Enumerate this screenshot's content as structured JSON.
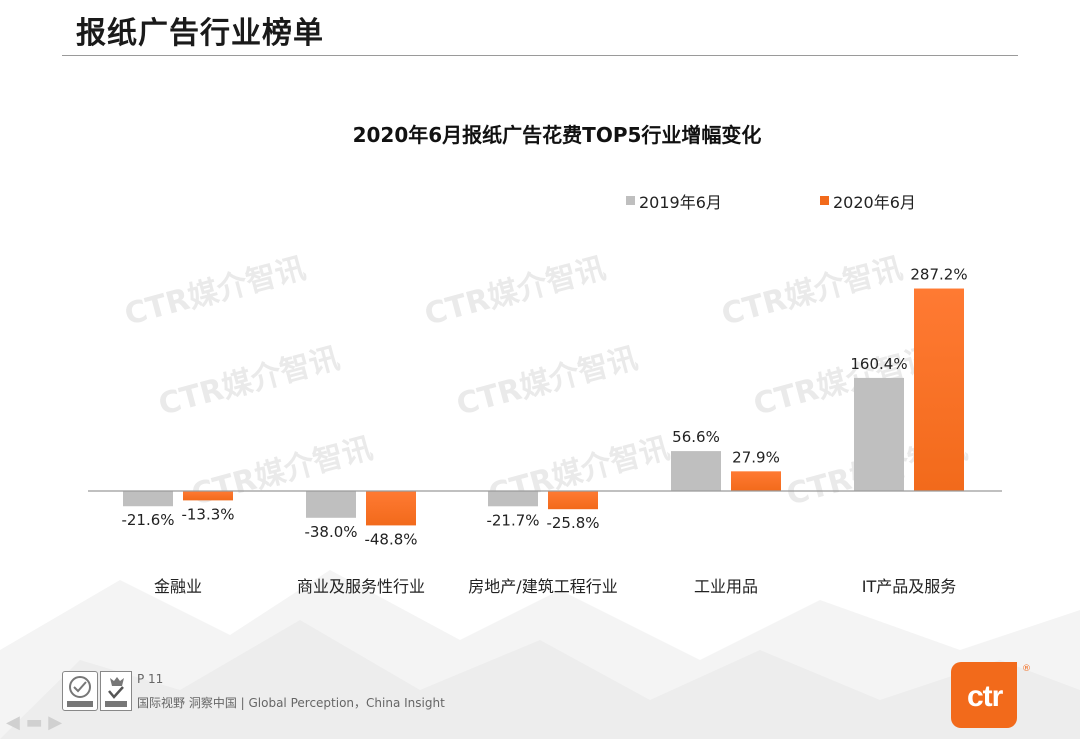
{
  "page": {
    "title": "报纸广告行业榜单",
    "page_number": "P 11",
    "tagline": "国际视野  洞察中国 |  Global Perception，China Insight",
    "logo_text": "ctr",
    "watermark": "CTR媒介智讯"
  },
  "colors": {
    "series_2019": "#bfbfbf",
    "series_2020": "#f26a1b",
    "accent": "#f26a1b"
  },
  "chart_data": {
    "type": "bar",
    "title": "2020年6月报纸广告花费TOP5行业增幅变化",
    "categories": [
      "金融业",
      "商业及服务性行业",
      "房地产/建筑工程行业",
      "工业用品",
      "IT产品及服务"
    ],
    "series": [
      {
        "name": "2019年6月",
        "values": [
          -21.6,
          -38.0,
          -21.7,
          56.6,
          160.4
        ],
        "labels": [
          "-21.6%",
          "-38.0%",
          "-21.7%",
          "56.6%",
          "160.4%"
        ]
      },
      {
        "name": "2020年6月",
        "values": [
          -13.3,
          -48.8,
          -25.8,
          27.9,
          287.2
        ],
        "labels": [
          "-13.3%",
          "-48.8%",
          "-25.8%",
          "27.9%",
          "287.2%"
        ]
      }
    ],
    "unit": "%",
    "legend_position": "top-right",
    "grid": false
  }
}
